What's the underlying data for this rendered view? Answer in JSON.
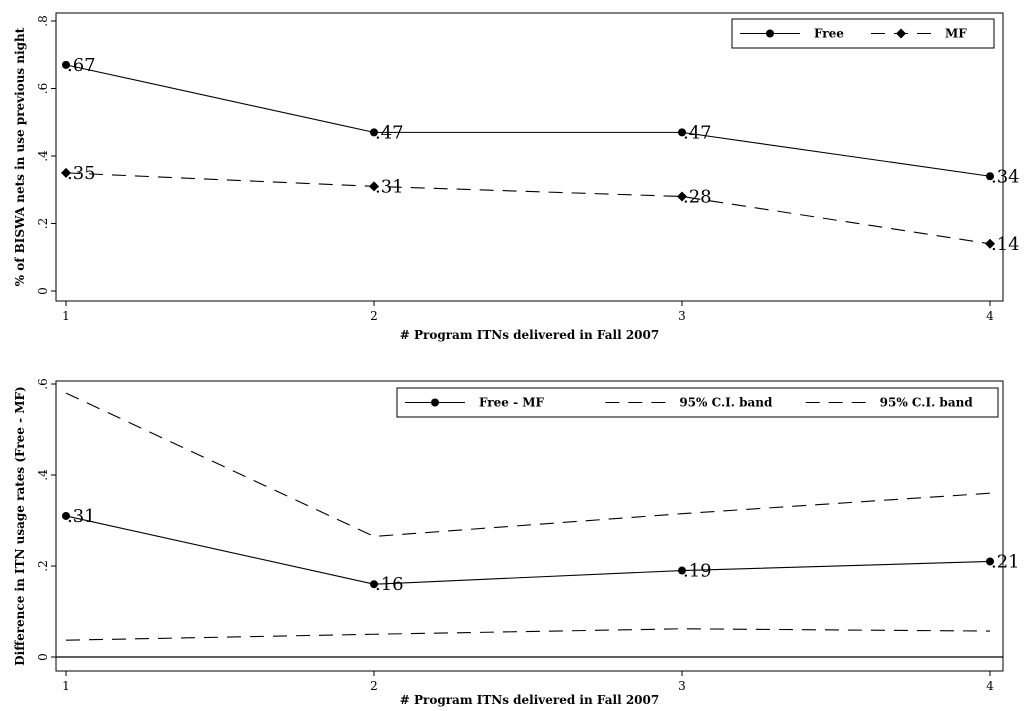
{
  "chart_data": [
    {
      "type": "line",
      "xlabel": "# Program ITNs delivered in Fall 2007",
      "ylabel": "% of BISWA nets in use previous night",
      "x": [
        1,
        2,
        3,
        4
      ],
      "xlim": [
        1,
        4
      ],
      "ylim": [
        0,
        0.8
      ],
      "yticks": [
        0,
        0.2,
        0.4,
        0.6,
        0.8
      ],
      "ytick_labels": [
        "0",
        ".2",
        ".4",
        ".6",
        ".8"
      ],
      "xtick_labels": [
        "1",
        "2",
        "3",
        "4"
      ],
      "legend_position": "top-right",
      "series": [
        {
          "name": "Free",
          "values": [
            0.67,
            0.47,
            0.47,
            0.34
          ],
          "labels": [
            ".67",
            ".47",
            ".47",
            ".34"
          ],
          "style": "solid",
          "marker": "circle"
        },
        {
          "name": "MF",
          "values": [
            0.35,
            0.31,
            0.28,
            0.14
          ],
          "labels": [
            ".35",
            ".31",
            ".28",
            ".14"
          ],
          "style": "dashed",
          "marker": "diamond"
        }
      ]
    },
    {
      "type": "line",
      "xlabel": "# Program ITNs delivered in Fall 2007",
      "ylabel": "Difference in ITN usage rates (Free - MF)",
      "x": [
        1,
        2,
        3,
        4
      ],
      "xlim": [
        1,
        4
      ],
      "ylim": [
        0,
        0.6
      ],
      "yticks": [
        0,
        0.2,
        0.4,
        0.6
      ],
      "ytick_labels": [
        "0",
        ".2",
        ".4",
        ".6"
      ],
      "xtick_labels": [
        "1",
        "2",
        "3",
        "4"
      ],
      "legend_position": "top-right",
      "reference_line_y": 0,
      "series": [
        {
          "name": "Free - MF",
          "values": [
            0.31,
            0.16,
            0.19,
            0.21
          ],
          "labels": [
            ".31",
            ".16",
            ".19",
            ".21"
          ],
          "style": "solid",
          "marker": "circle"
        },
        {
          "name": "95% C.I. band",
          "values": [
            0.58,
            0.265,
            0.315,
            0.36
          ],
          "style": "dashed",
          "marker": "none"
        },
        {
          "name": "95% C.I. band",
          "values": [
            0.037,
            0.05,
            0.062,
            0.057
          ],
          "style": "dashed",
          "marker": "none"
        }
      ]
    }
  ]
}
